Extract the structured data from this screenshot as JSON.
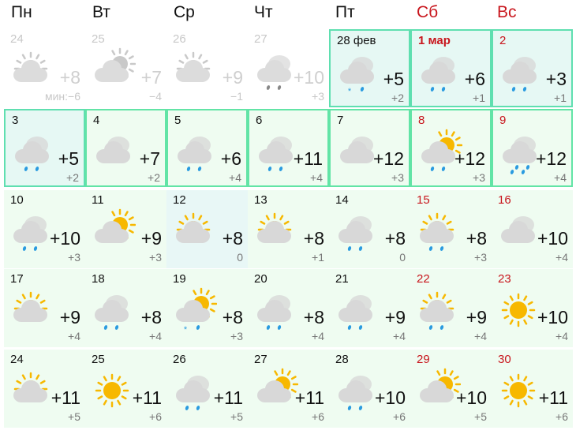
{
  "weekdays": [
    {
      "label": "Пн"
    },
    {
      "label": "Вт"
    },
    {
      "label": "Ср"
    },
    {
      "label": "Чт"
    },
    {
      "label": "Пт"
    },
    {
      "label": "Сб",
      "weekend": true
    },
    {
      "label": "Вс",
      "weekend": true
    }
  ],
  "colors": {
    "weekend": "#c8161d",
    "border": "#62e4a6",
    "sun": "#f7b800",
    "cloud": "#d8d8d8",
    "rain": "#2a9be0"
  },
  "weeks": [
    [
      {
        "day": "24",
        "icon": "partly-cloudy-sun-top",
        "sun": "top",
        "precip": "none",
        "temp": "+8",
        "min": "мин:−6",
        "past": true
      },
      {
        "day": "25",
        "icon": "partly-cloudy-sun-right",
        "sun": "right",
        "precip": "none",
        "temp": "+7",
        "min": "−4",
        "past": true
      },
      {
        "day": "26",
        "icon": "partly-cloudy-sun-top",
        "sun": "top",
        "precip": "none",
        "temp": "+9",
        "min": "−1",
        "past": true
      },
      {
        "day": "27",
        "icon": "rain",
        "sun": "none",
        "precip": "rain",
        "temp": "+10",
        "min": "+3",
        "past": true
      },
      {
        "day": "28 фев",
        "icon": "sleet",
        "sun": "none",
        "precip": "snow-rain",
        "temp": "+5",
        "min": "+2",
        "cur": true
      },
      {
        "day": "1 мар",
        "icon": "rain",
        "sun": "none",
        "precip": "rain",
        "temp": "+6",
        "min": "+1",
        "cur": true,
        "weekend": true,
        "bold": true
      },
      {
        "day": "2",
        "icon": "rain",
        "sun": "none",
        "precip": "rain",
        "temp": "+3",
        "min": "+1",
        "cur": true,
        "weekend": true
      }
    ],
    [
      {
        "day": "3",
        "icon": "rain",
        "sun": "none",
        "precip": "rain",
        "temp": "+5",
        "min": "+2",
        "cur": true
      },
      {
        "day": "4",
        "icon": "cloudy",
        "sun": "none",
        "precip": "none",
        "temp": "+7",
        "min": "+2",
        "b": true
      },
      {
        "day": "5",
        "icon": "rain",
        "sun": "none",
        "precip": "rain",
        "temp": "+6",
        "min": "+4",
        "b": true
      },
      {
        "day": "6",
        "icon": "rain",
        "sun": "none",
        "precip": "rain",
        "temp": "+11",
        "min": "+4",
        "b": true
      },
      {
        "day": "7",
        "icon": "cloudy",
        "sun": "none",
        "precip": "none",
        "temp": "+12",
        "min": "+3",
        "b": true
      },
      {
        "day": "8",
        "icon": "rain-sun",
        "sun": "right",
        "precip": "rain",
        "temp": "+12",
        "min": "+3",
        "b": true,
        "weekend": true
      },
      {
        "day": "9",
        "icon": "heavy-rain",
        "sun": "none",
        "precip": "heavy-rain",
        "temp": "+12",
        "min": "+4",
        "b": true,
        "weekend": true
      }
    ],
    [
      {
        "day": "10",
        "icon": "rain",
        "sun": "none",
        "precip": "rain",
        "temp": "+10",
        "min": "+3"
      },
      {
        "day": "11",
        "icon": "partly-cloudy-sun-right",
        "sun": "right",
        "precip": "none",
        "temp": "+9",
        "min": "+3"
      },
      {
        "day": "12",
        "icon": "partly-cloudy-sun-top",
        "sun": "top",
        "precip": "none",
        "temp": "+8",
        "min": "0",
        "blue": true
      },
      {
        "day": "13",
        "icon": "partly-cloudy-sun-top",
        "sun": "top",
        "precip": "none",
        "temp": "+8",
        "min": "+1"
      },
      {
        "day": "14",
        "icon": "rain",
        "sun": "none",
        "precip": "rain",
        "temp": "+8",
        "min": "0"
      },
      {
        "day": "15",
        "icon": "rain-sun",
        "sun": "top",
        "precip": "rain",
        "temp": "+8",
        "min": "+3",
        "weekend": true
      },
      {
        "day": "16",
        "icon": "cloudy",
        "sun": "none",
        "precip": "none",
        "temp": "+10",
        "min": "+4",
        "weekend": true
      }
    ],
    [
      {
        "day": "17",
        "icon": "partly-cloudy-sun-top",
        "sun": "top",
        "precip": "none",
        "temp": "+9",
        "min": "+4"
      },
      {
        "day": "18",
        "icon": "rain",
        "sun": "none",
        "precip": "rain",
        "temp": "+8",
        "min": "+4"
      },
      {
        "day": "19",
        "icon": "sleet-sun",
        "sun": "right",
        "precip": "snow-rain",
        "temp": "+8",
        "min": "+3"
      },
      {
        "day": "20",
        "icon": "rain",
        "sun": "none",
        "precip": "rain",
        "temp": "+8",
        "min": "+4"
      },
      {
        "day": "21",
        "icon": "rain",
        "sun": "none",
        "precip": "rain",
        "temp": "+9",
        "min": "+4"
      },
      {
        "day": "22",
        "icon": "rain-sun",
        "sun": "top",
        "precip": "rain",
        "temp": "+9",
        "min": "+4",
        "weekend": true
      },
      {
        "day": "23",
        "icon": "sun",
        "sun": "full",
        "precip": "none",
        "temp": "+10",
        "min": "+4",
        "weekend": true
      }
    ],
    [
      {
        "day": "24",
        "icon": "partly-cloudy-sun-top",
        "sun": "top",
        "precip": "none",
        "temp": "+11",
        "min": "+5"
      },
      {
        "day": "25",
        "icon": "sun",
        "sun": "full",
        "precip": "none",
        "temp": "+11",
        "min": "+6"
      },
      {
        "day": "26",
        "icon": "rain",
        "sun": "none",
        "precip": "rain",
        "temp": "+11",
        "min": "+5"
      },
      {
        "day": "27",
        "icon": "partly-cloudy-sun-right",
        "sun": "right",
        "precip": "none",
        "temp": "+11",
        "min": "+6"
      },
      {
        "day": "28",
        "icon": "rain",
        "sun": "none",
        "precip": "rain",
        "temp": "+10",
        "min": "+6"
      },
      {
        "day": "29",
        "icon": "partly-cloudy-sun-right",
        "sun": "right",
        "precip": "none",
        "temp": "+10",
        "min": "+5",
        "weekend": true
      },
      {
        "day": "30",
        "icon": "sun",
        "sun": "full",
        "precip": "none",
        "temp": "+11",
        "min": "+6",
        "weekend": true
      }
    ]
  ]
}
